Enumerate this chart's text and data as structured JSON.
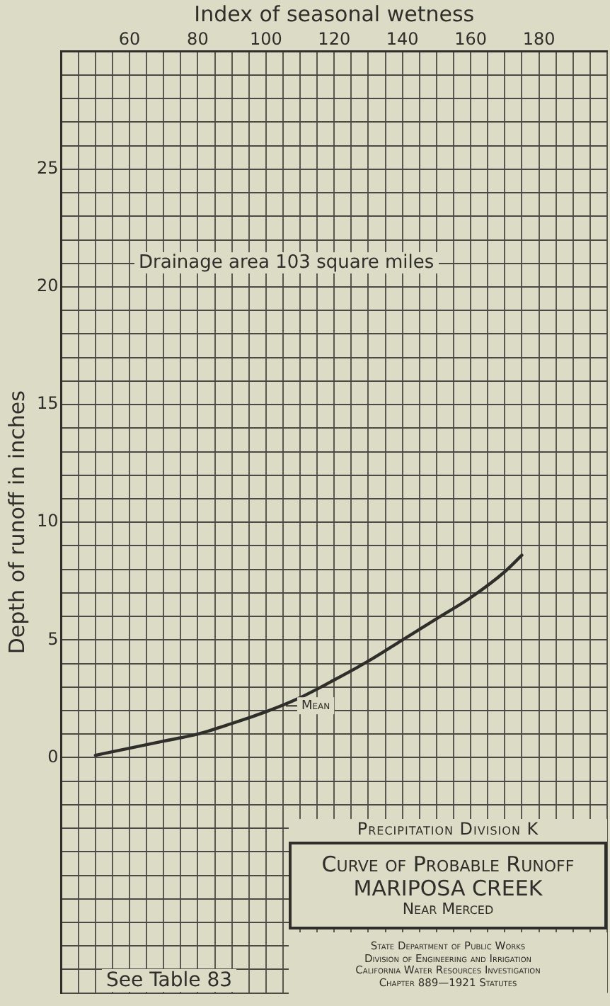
{
  "chart_data": {
    "type": "line",
    "title": "Curve of Probable Runoff",
    "subtitle": "MARIPOSA CREEK",
    "xlabel": "Index of seasonal wetness",
    "ylabel": "Depth of runoff in inches",
    "x": [
      50,
      60,
      70,
      80,
      90,
      100,
      110,
      120,
      130,
      140,
      150,
      160,
      170,
      175
    ],
    "series": [
      {
        "color": "#2e2e2a",
        "values": [
          0.1,
          0.4,
          0.7,
          1.0,
          1.45,
          1.95,
          2.55,
          3.3,
          4.1,
          5.0,
          5.9,
          6.8,
          7.9,
          8.6
        ]
      }
    ],
    "xlim": [
      40,
      200
    ],
    "xticks": [
      {
        "value": 40,
        "label": null
      },
      {
        "value": 45,
        "label": null
      },
      {
        "value": 50,
        "label": null
      },
      {
        "value": 55,
        "label": null
      },
      60,
      {
        "value": 65,
        "label": null
      },
      {
        "value": 70,
        "label": null
      },
      {
        "value": 75,
        "label": null
      },
      80,
      {
        "value": 85,
        "label": null
      },
      {
        "value": 90,
        "label": null
      },
      {
        "value": 95,
        "label": null
      },
      100,
      {
        "value": 105,
        "label": null
      },
      {
        "value": 110,
        "label": null
      },
      {
        "value": 115,
        "label": null
      },
      120,
      {
        "value": 125,
        "label": null
      },
      {
        "value": 130,
        "label": null
      },
      {
        "value": 135,
        "label": null
      },
      140,
      {
        "value": 145,
        "label": null
      },
      {
        "value": 150,
        "label": null
      },
      {
        "value": 155,
        "label": null
      },
      160,
      {
        "value": 165,
        "label": null
      },
      {
        "value": 170,
        "label": null
      },
      {
        "value": 175,
        "label": null
      },
      180,
      {
        "value": 185,
        "label": null
      },
      {
        "value": 190,
        "label": null
      },
      {
        "value": 195,
        "label": null
      },
      {
        "value": 200,
        "label": null
      }
    ],
    "ylim": [
      -10,
      30
    ],
    "yticks": [
      {
        "value": -10,
        "label": null
      },
      {
        "value": -9,
        "label": null
      },
      {
        "value": -8,
        "label": null
      },
      {
        "value": -7,
        "label": null
      },
      {
        "value": -6,
        "label": null
      },
      {
        "value": -5,
        "label": null
      },
      {
        "value": -4,
        "label": null
      },
      {
        "value": -3,
        "label": null
      },
      {
        "value": -2,
        "label": null
      },
      {
        "value": -1,
        "label": null
      },
      0,
      {
        "value": 1,
        "label": null
      },
      {
        "value": 2,
        "label": null
      },
      {
        "value": 3,
        "label": null
      },
      {
        "value": 4,
        "label": null
      },
      5,
      {
        "value": 6,
        "label": null
      },
      {
        "value": 7,
        "label": null
      },
      {
        "value": 8,
        "label": null
      },
      {
        "value": 9,
        "label": null
      },
      10,
      {
        "value": 11,
        "label": null
      },
      {
        "value": 12,
        "label": null
      },
      {
        "value": 13,
        "label": null
      },
      {
        "value": 14,
        "label": null
      },
      15,
      {
        "value": 16,
        "label": null
      },
      {
        "value": 17,
        "label": null
      },
      {
        "value": 18,
        "label": null
      },
      {
        "value": 19,
        "label": null
      },
      20,
      {
        "value": 21,
        "label": null
      },
      {
        "value": 22,
        "label": null
      },
      {
        "value": 23,
        "label": null
      },
      {
        "value": 24,
        "label": null
      },
      25,
      {
        "value": 26,
        "label": null
      },
      {
        "value": 27,
        "label": null
      },
      {
        "value": 28,
        "label": null
      },
      {
        "value": 29,
        "label": null
      },
      {
        "value": 30,
        "label": null
      }
    ],
    "grid": true,
    "annotations": [
      {
        "text": "Mean",
        "x": 105,
        "y": 2.2
      },
      "Drainage area 103 square miles",
      "See Table 83",
      "Precipitation Division K",
      "Near Merced",
      "State Department of Public Works",
      "Division of Engineering and Irrigation",
      "California Water Resources Investigation",
      "Chapter 889—1921 Statutes"
    ]
  }
}
